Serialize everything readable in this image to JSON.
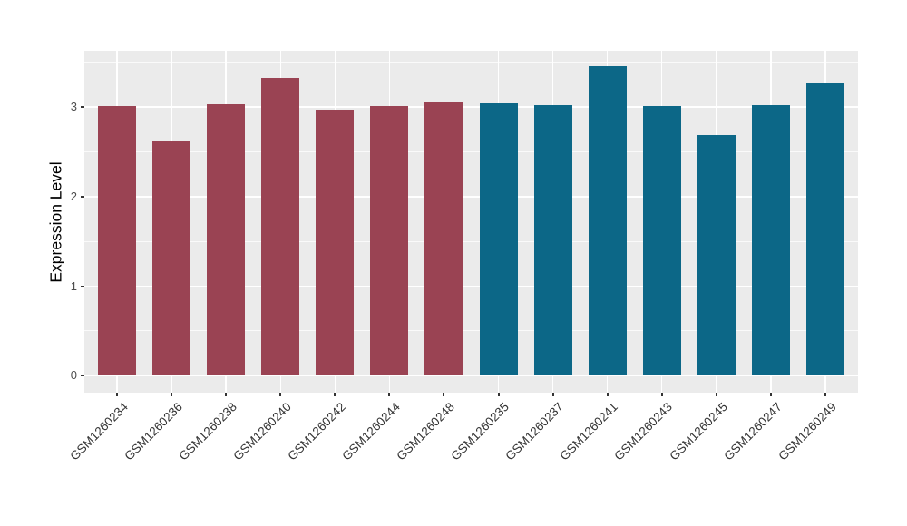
{
  "chart_data": {
    "type": "bar",
    "title": "",
    "xlabel": "",
    "ylabel": "Expression Level",
    "categories": [
      "GSM1260234",
      "GSM1260236",
      "GSM1260238",
      "GSM1260240",
      "GSM1260242",
      "GSM1260244",
      "GSM1260248",
      "GSM1260235",
      "GSM1260237",
      "GSM1260241",
      "GSM1260243",
      "GSM1260245",
      "GSM1260247",
      "GSM1260249"
    ],
    "values": [
      3.01,
      2.63,
      3.03,
      3.33,
      2.97,
      3.01,
      3.05,
      3.04,
      3.02,
      3.46,
      3.01,
      2.69,
      3.02,
      3.27
    ],
    "bar_colors": [
      "#9a4353",
      "#9a4353",
      "#9a4353",
      "#9a4353",
      "#9a4353",
      "#9a4353",
      "#9a4353",
      "#0c6787",
      "#0c6787",
      "#0c6787",
      "#0c6787",
      "#0c6787",
      "#0c6787",
      "#0c6787"
    ],
    "yticks": [
      0,
      1,
      2,
      3
    ],
    "minor_yticks": [
      0.5,
      1.5,
      2.5,
      3.5
    ],
    "ylim": [
      -0.19,
      3.63
    ],
    "grid": true,
    "legend": "none",
    "panel_bg": "#ebebeb",
    "grid_color": "#ffffff",
    "bar_width_ratio": 0.7
  }
}
